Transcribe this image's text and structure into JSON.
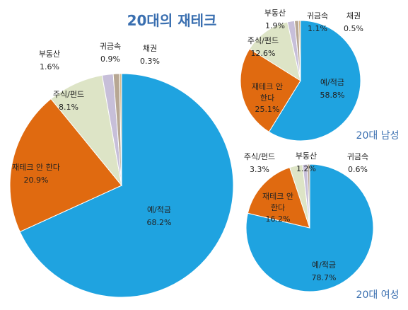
{
  "title": "20대의 재테크",
  "colors": {
    "deposit": "#1fa3e0",
    "no_invest": "#e06a10",
    "stock": "#dde4c6",
    "realestate": "#c7bfd9",
    "metal": "#b7a794",
    "bond": "#d9b98a"
  },
  "chart_data": [
    {
      "type": "pie",
      "name": "",
      "slices": [
        {
          "label": "예/적금",
          "value": 68.2,
          "pct_text": "68.2%",
          "color": "#1fa3e0"
        },
        {
          "label": "재테크 안 한다",
          "value": 20.9,
          "pct_text": "20.9%",
          "color": "#e06a10"
        },
        {
          "label": "주식/펀드",
          "value": 8.1,
          "pct_text": "8.1%",
          "color": "#dde4c6"
        },
        {
          "label": "부동산",
          "value": 1.6,
          "pct_text": "1.6%",
          "color": "#c7bfd9"
        },
        {
          "label": "귀금속",
          "value": 0.9,
          "pct_text": "0.9%",
          "color": "#b7a794"
        },
        {
          "label": "채권",
          "value": 0.3,
          "pct_text": "0.3%",
          "color": "#d9b98a"
        }
      ]
    },
    {
      "type": "pie",
      "name": "20대 남성",
      "slices": [
        {
          "label": "예/적금",
          "value": 58.8,
          "pct_text": "58.8%",
          "color": "#1fa3e0"
        },
        {
          "label": "재테크 안 한다",
          "value": 25.1,
          "pct_text": "25.1%",
          "color": "#e06a10"
        },
        {
          "label": "주식/펀드",
          "value": 12.6,
          "pct_text": "12.6%",
          "color": "#dde4c6"
        },
        {
          "label": "부동산",
          "value": 1.9,
          "pct_text": "1.9%",
          "color": "#c7bfd9"
        },
        {
          "label": "귀금속",
          "value": 1.1,
          "pct_text": "1.1%",
          "color": "#b7a794"
        },
        {
          "label": "채권",
          "value": 0.5,
          "pct_text": "0.5%",
          "color": "#d9b98a"
        }
      ]
    },
    {
      "type": "pie",
      "name": "20대 여성",
      "slices": [
        {
          "label": "예/적금",
          "value": 78.7,
          "pct_text": "78.7%",
          "color": "#1fa3e0"
        },
        {
          "label": "재테크 안 한다",
          "value": 16.2,
          "pct_text": "16.2%",
          "color": "#e06a10"
        },
        {
          "label": "주식/펀드",
          "value": 3.3,
          "pct_text": "3.3%",
          "color": "#dde4c6"
        },
        {
          "label": "부동산",
          "value": 1.2,
          "pct_text": "1.2%",
          "color": "#c7bfd9"
        },
        {
          "label": "귀금속",
          "value": 0.6,
          "pct_text": "0.6%",
          "color": "#b7a794"
        }
      ]
    }
  ]
}
